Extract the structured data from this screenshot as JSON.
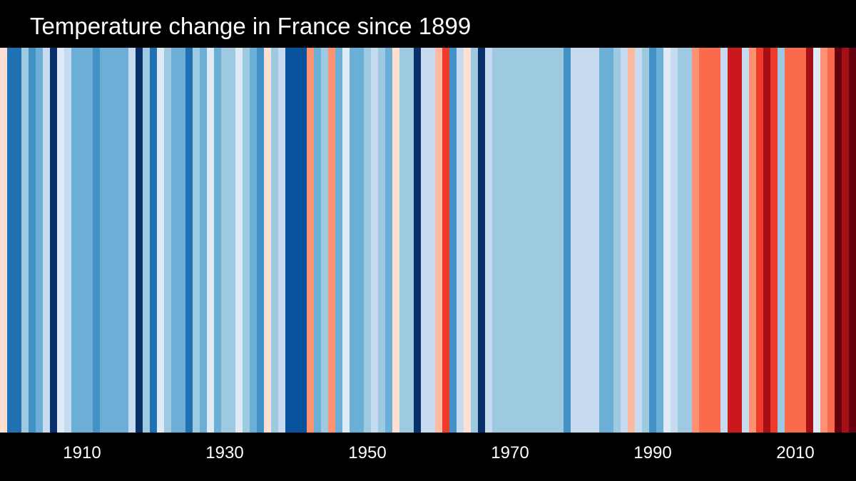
{
  "title": "Temperature change in France since 1899",
  "chart_data": {
    "type": "heatmap",
    "title": "Temperature change in France since 1899",
    "xlabel": "",
    "ylabel": "",
    "x_start": 1899,
    "x_end": 2018,
    "xticks": [
      "1910",
      "1930",
      "1950",
      "1970",
      "1990",
      "2010"
    ],
    "grid": false,
    "legend": "none",
    "palette": [
      "#08306b",
      "#08519c",
      "#2171b5",
      "#4292c6",
      "#6baed6",
      "#9ecae1",
      "#c6dbef",
      "#deebf7",
      "#fee0d2",
      "#fcbba1",
      "#fc9272",
      "#fb6a4a",
      "#ef3b2c",
      "#cb181d",
      "#a50f15",
      "#67000d"
    ],
    "value_range": [
      0,
      15
    ],
    "values": [
      8,
      2,
      2,
      5,
      3,
      4,
      6,
      0,
      7,
      6,
      4,
      4,
      4,
      3,
      4,
      4,
      4,
      4,
      6,
      0,
      5,
      2,
      7,
      5,
      4,
      4,
      2,
      5,
      4,
      7,
      4,
      5,
      5,
      7,
      5,
      4,
      3,
      8,
      5,
      6,
      1,
      1,
      1,
      10,
      4,
      5,
      10,
      4,
      7,
      4,
      4,
      5,
      6,
      5,
      4,
      8,
      5,
      5,
      0,
      6,
      6,
      9,
      12,
      3,
      6,
      8,
      5,
      0,
      6,
      5,
      5,
      5,
      5,
      5,
      5,
      5,
      5,
      5,
      5,
      3,
      6,
      6,
      6,
      6,
      4,
      4,
      5,
      6,
      9,
      6,
      5,
      3,
      4,
      7,
      6,
      5,
      5,
      10,
      11,
      11,
      11,
      6,
      13,
      13,
      6,
      10,
      12,
      14,
      12,
      5,
      11,
      11,
      11,
      14,
      7,
      10,
      11,
      15,
      14,
      15
    ]
  }
}
